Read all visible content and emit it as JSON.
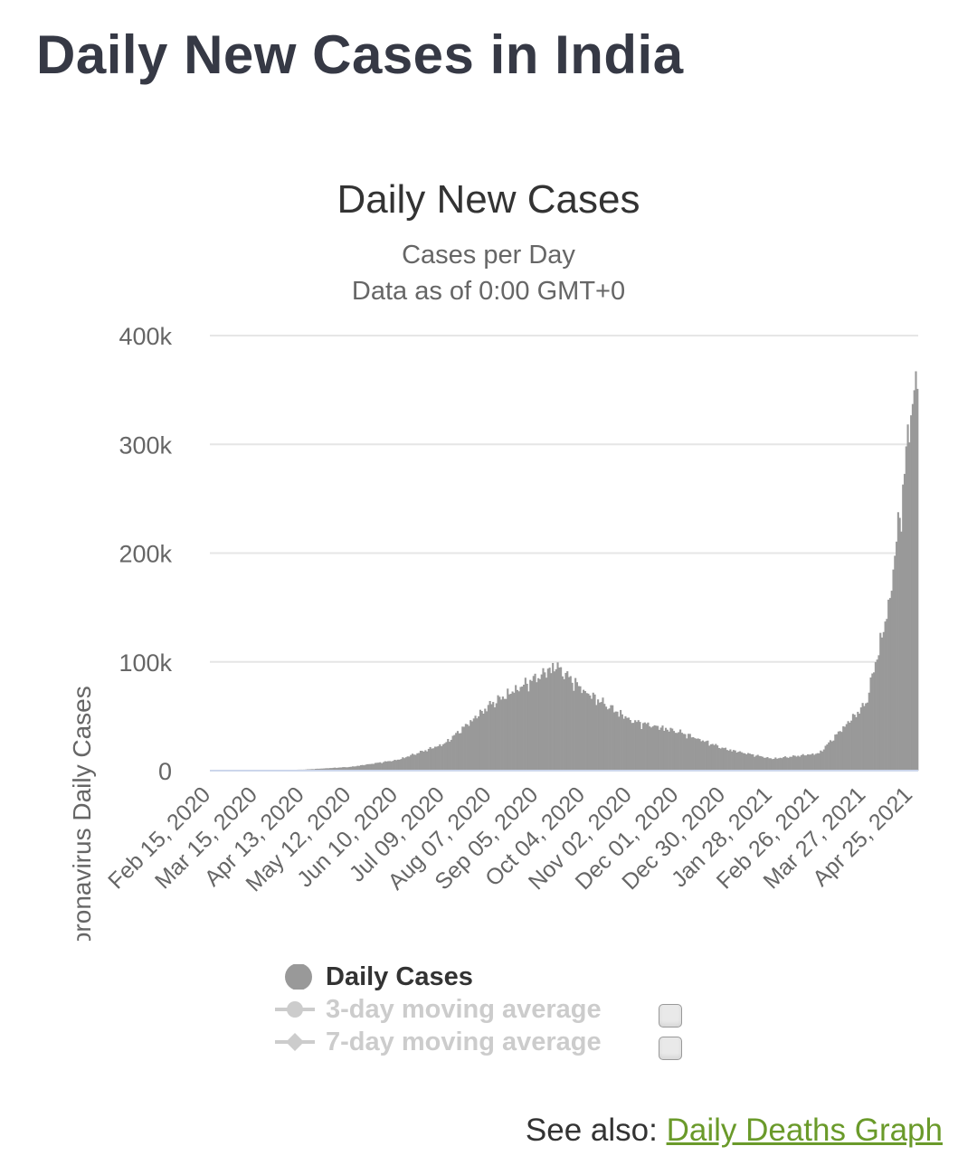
{
  "page": {
    "title": "Daily New Cases in India",
    "see_also_label": "See also:",
    "see_also_link": "Daily Deaths Graph"
  },
  "legend": {
    "items": [
      {
        "label": "Daily Cases",
        "color": "#999999",
        "active": true
      },
      {
        "label": "3-day moving average",
        "color": "#cccccc",
        "active": false
      },
      {
        "label": "7-day moving average",
        "color": "#cccccc",
        "active": false
      }
    ]
  },
  "chart_data": {
    "type": "bar",
    "title": "Daily New Cases",
    "subtitle": "Cases per Day",
    "subtitle2": "Data as of 0:00 GMT+0",
    "xlabel": "",
    "ylabel": "Novel Coronavirus Daily Cases",
    "ylim": [
      0,
      400000
    ],
    "yticks": [
      0,
      100000,
      200000,
      300000,
      400000
    ],
    "ytick_labels": [
      "0",
      "100k",
      "200k",
      "300k",
      "400k"
    ],
    "x_start": "Feb 15, 2020",
    "x_end": "Apr 28, 2021",
    "xtick_labels": [
      "Feb 15, 2020",
      "Mar 15, 2020",
      "Apr 13, 2020",
      "May 12, 2020",
      "Jun 10, 2020",
      "Jul 09, 2020",
      "Aug 07, 2020",
      "Sep 05, 2020",
      "Oct 04, 2020",
      "Nov 02, 2020",
      "Dec 01, 2020",
      "Dec 30, 2020",
      "Jan 28, 2021",
      "Feb 26, 2021",
      "Mar 27, 2021",
      "Apr 25, 2021"
    ],
    "grid": true,
    "bar_color": "#999999",
    "key_points": [
      {
        "date": "Feb 15, 2020",
        "value": 0
      },
      {
        "date": "Mar 15, 2020",
        "value": 20
      },
      {
        "date": "Apr 13, 2020",
        "value": 1000
      },
      {
        "date": "May 12, 2020",
        "value": 3500
      },
      {
        "date": "Jun 10, 2020",
        "value": 10000
      },
      {
        "date": "Jul 09, 2020",
        "value": 25000
      },
      {
        "date": "Aug 07, 2020",
        "value": 62000
      },
      {
        "date": "Sep 05, 2020",
        "value": 87000
      },
      {
        "date": "Sep 16, 2020",
        "value": 97000
      },
      {
        "date": "Oct 04, 2020",
        "value": 73000
      },
      {
        "date": "Nov 02, 2020",
        "value": 46000
      },
      {
        "date": "Dec 01, 2020",
        "value": 36000
      },
      {
        "date": "Dec 30, 2020",
        "value": 20000
      },
      {
        "date": "Jan 28, 2021",
        "value": 11000
      },
      {
        "date": "Feb 26, 2021",
        "value": 16000
      },
      {
        "date": "Mar 27, 2021",
        "value": 62000
      },
      {
        "date": "Apr 10, 2021",
        "value": 150000
      },
      {
        "date": "Apr 19, 2021",
        "value": 260000
      },
      {
        "date": "Apr 25, 2021",
        "value": 350000
      },
      {
        "date": "Apr 28, 2021",
        "value": 352000
      }
    ]
  }
}
